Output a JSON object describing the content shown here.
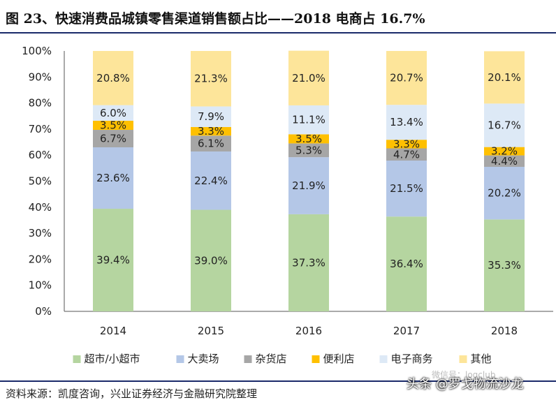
{
  "title": "图 23、快速消费品城镇零售渠道销售额占比——2018 电商占 16.7%",
  "source": "资料来源：凯度咨询，兴业证券经济与金融研究院整理",
  "watermark": "头条 @罗戈物流沙龙",
  "watermark_sub": "微信号：logclub",
  "chart_data": {
    "type": "bar",
    "stacked": true,
    "categories": [
      "2014",
      "2015",
      "2016",
      "2017",
      "2018"
    ],
    "ylim": [
      0,
      100
    ],
    "yticks": [
      "0%",
      "10%",
      "20%",
      "30%",
      "40%",
      "50%",
      "60%",
      "70%",
      "80%",
      "90%",
      "100%"
    ],
    "grid": false,
    "legend_position": "bottom",
    "series": [
      {
        "name": "超市/小超市",
        "color": "#b5d5a0",
        "values": [
          39.4,
          39.0,
          37.3,
          36.4,
          35.3
        ],
        "labels": [
          "39.4%",
          "39.0%",
          "37.3%",
          "36.4%",
          "35.3%"
        ]
      },
      {
        "name": "大卖场",
        "color": "#b4c7e7",
        "values": [
          23.6,
          22.4,
          21.9,
          21.5,
          20.2
        ],
        "labels": [
          "23.6%",
          "22.4%",
          "21.9%",
          "21.5%",
          "20.2%"
        ]
      },
      {
        "name": "杂货店",
        "color": "#a6a6a6",
        "values": [
          6.7,
          6.1,
          5.3,
          4.7,
          4.4
        ],
        "labels": [
          "6.7%",
          "6.1%",
          "5.3%",
          "4.7%",
          "4.4%"
        ]
      },
      {
        "name": "便利店",
        "color": "#ffc000",
        "values": [
          3.5,
          3.3,
          3.5,
          3.3,
          3.2
        ],
        "labels": [
          "3.5%",
          "3.3%",
          "3.5%",
          "3.3%",
          "3.2%"
        ]
      },
      {
        "name": "电子商务",
        "color": "#dde9f6",
        "values": [
          6.0,
          7.9,
          11.1,
          13.4,
          16.7
        ],
        "labels": [
          "6.0%",
          "7.9%",
          "11.1%",
          "13.4%",
          "16.7%"
        ]
      },
      {
        "name": "其他",
        "color": "#fde59a",
        "values": [
          20.8,
          21.3,
          21.0,
          20.7,
          20.1
        ],
        "labels": [
          "20.8%",
          "21.3%",
          "21.0%",
          "20.7%",
          "20.1%"
        ]
      }
    ]
  }
}
